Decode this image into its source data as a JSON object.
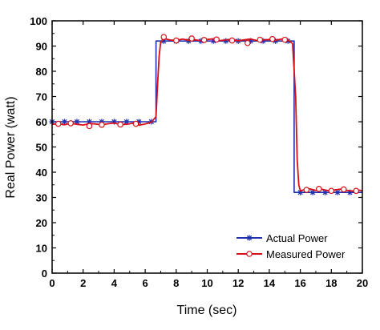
{
  "chart_data": {
    "type": "line",
    "title": "",
    "xlabel": "Time (sec)",
    "ylabel": "Real Power (watt)",
    "xlim": [
      0,
      20
    ],
    "ylim": [
      0,
      100
    ],
    "xticks": [
      "0",
      "2",
      "4",
      "6",
      "8",
      "10",
      "12",
      "14",
      "16",
      "18",
      "20"
    ],
    "yticks": [
      "0",
      "10",
      "20",
      "30",
      "40",
      "50",
      "60",
      "70",
      "80",
      "90",
      "100"
    ],
    "grid": false,
    "legend_position": "bottom-right",
    "series": [
      {
        "name": "Actual Power",
        "color": "#1f2fb0",
        "marker": "asterisk",
        "x": [
          0,
          6.7,
          6.7,
          15.6,
          15.6,
          20
        ],
        "y": [
          60,
          60,
          92,
          92,
          32,
          32
        ],
        "marker_x": [
          0,
          0.8,
          1.6,
          2.4,
          3.2,
          4.0,
          4.8,
          5.6,
          6.4,
          7.2,
          8.0,
          8.8,
          9.6,
          10.4,
          11.2,
          12.0,
          12.8,
          13.6,
          14.4,
          15.2,
          16.0,
          16.8,
          17.6,
          18.4,
          19.2
        ],
        "marker_y": [
          60,
          60,
          60,
          60,
          60,
          60,
          60,
          60,
          60,
          92,
          92,
          92,
          92,
          92,
          92,
          92,
          92,
          92,
          92,
          92,
          32,
          32,
          32,
          32,
          32
        ]
      },
      {
        "name": "Measured Power",
        "color": "#d8101a",
        "marker": "circle",
        "x": [
          0,
          0.4,
          0.8,
          1.2,
          1.6,
          2.0,
          2.4,
          2.8,
          3.2,
          3.6,
          4.0,
          4.4,
          4.8,
          5.2,
          5.6,
          6.0,
          6.4,
          6.7,
          6.8,
          6.9,
          7.0,
          7.2,
          7.6,
          8.0,
          8.4,
          8.8,
          9.2,
          9.6,
          10.0,
          10.4,
          10.8,
          11.2,
          11.6,
          12.0,
          12.4,
          12.8,
          13.2,
          13.6,
          14.0,
          14.4,
          14.8,
          15.2,
          15.5,
          15.7,
          15.8,
          15.9,
          16.0,
          16.2,
          16.6,
          17.0,
          17.4,
          17.8,
          18.2,
          18.6,
          19.0,
          19.4,
          19.8,
          20
        ],
        "y": [
          59,
          59.2,
          58.8,
          59.4,
          59,
          58.7,
          59.3,
          59.1,
          58.8,
          59.2,
          59.5,
          58.9,
          59,
          59.4,
          58.6,
          59.1,
          59.8,
          62,
          75,
          86,
          91.5,
          93,
          92.4,
          92.2,
          92.8,
          92.3,
          92.5,
          92.1,
          92.6,
          92.9,
          92.2,
          92.4,
          92.7,
          92.1,
          92.5,
          92.8,
          92.2,
          92.4,
          92.6,
          92.3,
          92.8,
          92.4,
          91,
          70,
          45,
          35,
          32.6,
          33,
          33.4,
          32.8,
          33.2,
          32.7,
          33,
          33.3,
          32.8,
          32.5,
          32.9,
          32.6
        ],
        "marker_x": [
          0.4,
          1.2,
          2.4,
          3.2,
          4.4,
          5.4,
          7.2,
          8.0,
          9.0,
          9.8,
          10.6,
          11.6,
          12.6,
          13.4,
          14.2,
          15.0,
          16.4,
          17.2,
          18.0,
          18.8,
          19.6
        ],
        "marker_y": [
          59.2,
          59.4,
          58.3,
          58.8,
          58.9,
          59.2,
          93.6,
          92.2,
          93.0,
          92.4,
          92.6,
          92.2,
          91.2,
          92.5,
          92.8,
          92.5,
          33.0,
          33.4,
          32.6,
          33.2,
          32.6
        ]
      }
    ]
  }
}
